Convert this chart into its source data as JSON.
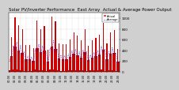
{
  "title": "Solar PV/Inverter Performance  East Array  Actual & Average Power Output",
  "background_color": "#d0d0d0",
  "plot_bg_color": "#ffffff",
  "bar_color": "#cc0000",
  "avg_line_color": "#0000cc",
  "legend_actual_color": "#ff4444",
  "legend_avg_color": "#0000ff",
  "ylim": [
    0,
    1100
  ],
  "yticks": [
    0,
    200,
    400,
    600,
    800,
    1000
  ],
  "num_bars": 120,
  "title_fontsize": 4.0,
  "tick_fontsize": 3.0
}
